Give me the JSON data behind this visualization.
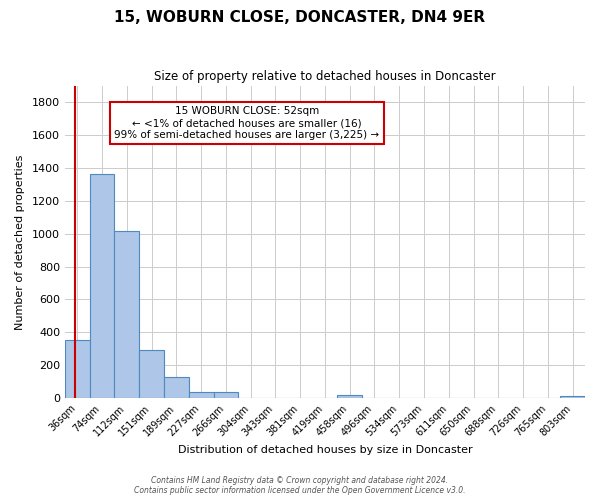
{
  "title": "15, WOBURN CLOSE, DONCASTER, DN4 9ER",
  "subtitle": "Size of property relative to detached houses in Doncaster",
  "xlabel": "Distribution of detached houses by size in Doncaster",
  "ylabel": "Number of detached properties",
  "bin_labels": [
    "36sqm",
    "74sqm",
    "112sqm",
    "151sqm",
    "189sqm",
    "227sqm",
    "266sqm",
    "304sqm",
    "343sqm",
    "381sqm",
    "419sqm",
    "458sqm",
    "496sqm",
    "534sqm",
    "573sqm",
    "611sqm",
    "650sqm",
    "688sqm",
    "726sqm",
    "765sqm",
    "803sqm"
  ],
  "bar_heights": [
    355,
    1365,
    1015,
    290,
    130,
    40,
    35,
    0,
    0,
    0,
    0,
    20,
    0,
    0,
    0,
    0,
    0,
    0,
    0,
    0,
    15
  ],
  "bar_color": "#aec6e8",
  "bar_edge_color": "#4e8abf",
  "ylim": [
    0,
    1900
  ],
  "yticks": [
    0,
    200,
    400,
    600,
    800,
    1000,
    1200,
    1400,
    1600,
    1800
  ],
  "property_line_x": 0.43,
  "annotation_box_text": "15 WOBURN CLOSE: 52sqm\n← <1% of detached houses are smaller (16)\n99% of semi-detached houses are larger (3,225) →",
  "annotation_box_color": "#ffffff",
  "annotation_box_edge_color": "#cc0000",
  "property_line_color": "#cc0000",
  "footer_line1": "Contains HM Land Registry data © Crown copyright and database right 2024.",
  "footer_line2": "Contains public sector information licensed under the Open Government Licence v3.0.",
  "background_color": "#ffffff",
  "grid_color": "#cccccc"
}
